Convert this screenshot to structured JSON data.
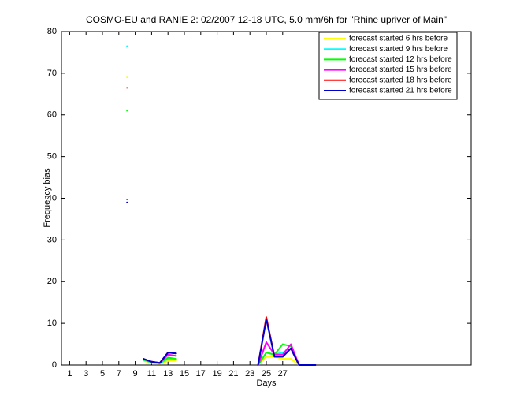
{
  "chart_data": {
    "type": "line",
    "title": "COSMO-EU and RANIE 2: 02/2007 12-18 UTC, 5.0 mm/6h for \"Rhine upriver of Main\"",
    "xlabel": "Days",
    "ylabel": "Frequency bias",
    "x": [
      1,
      2,
      3,
      4,
      5,
      6,
      7,
      8,
      9,
      10,
      11,
      12,
      13,
      14,
      15,
      16,
      17,
      18,
      19,
      20,
      21,
      22,
      23,
      24,
      25,
      26,
      27,
      28,
      29,
      30,
      31
    ],
    "series": [
      {
        "name": "forecast started 6 hrs before",
        "color": "#ffff00",
        "values": [
          null,
          null,
          null,
          null,
          null,
          null,
          null,
          69,
          null,
          1.0,
          0.5,
          0.3,
          1.0,
          1.0,
          null,
          null,
          null,
          null,
          null,
          null,
          null,
          null,
          null,
          0,
          2,
          2,
          1.5,
          1.5,
          0,
          0,
          0
        ]
      },
      {
        "name": "forecast started 9 hrs before",
        "color": "#00ffff",
        "values": [
          null,
          null,
          null,
          null,
          null,
          null,
          null,
          76.5,
          null,
          1.2,
          0.6,
          0.4,
          1.5,
          1.3,
          null,
          null,
          null,
          null,
          null,
          null,
          null,
          null,
          null,
          0,
          3,
          2.5,
          3,
          4,
          0,
          0,
          0
        ]
      },
      {
        "name": "forecast started 12 hrs before",
        "color": "#00ff00",
        "values": [
          null,
          null,
          null,
          null,
          null,
          null,
          null,
          61,
          null,
          1.3,
          0.7,
          0.5,
          1.8,
          1.5,
          null,
          null,
          null,
          null,
          null,
          null,
          null,
          null,
          null,
          0,
          3,
          2.5,
          5,
          4.5,
          0,
          0,
          0
        ]
      },
      {
        "name": "forecast started 15 hrs before",
        "color": "#ff00ff",
        "values": [
          null,
          null,
          null,
          null,
          null,
          null,
          null,
          39.7,
          null,
          1.4,
          0.8,
          0.5,
          2.5,
          2.2,
          null,
          null,
          null,
          null,
          null,
          null,
          null,
          null,
          null,
          0,
          5.5,
          2.5,
          2.5,
          5,
          0,
          0,
          0
        ]
      },
      {
        "name": "forecast started 18 hrs before",
        "color": "#ff0000",
        "values": [
          null,
          null,
          null,
          null,
          null,
          null,
          null,
          66.5,
          null,
          1.5,
          0.8,
          0.5,
          3,
          2.8,
          null,
          null,
          null,
          null,
          null,
          null,
          null,
          null,
          null,
          0,
          11.5,
          2,
          2,
          4,
          0,
          0,
          0
        ]
      },
      {
        "name": "forecast started 21 hrs before",
        "color": "#0000cc",
        "values": [
          null,
          null,
          null,
          null,
          null,
          null,
          null,
          39,
          null,
          1.5,
          0.8,
          0.5,
          3,
          2.8,
          null,
          null,
          null,
          null,
          null,
          null,
          null,
          null,
          null,
          0,
          11,
          2,
          2,
          4,
          0,
          0,
          0
        ]
      }
    ],
    "xlim": [
      0,
      50
    ],
    "xticks": [
      1,
      3,
      5,
      7,
      9,
      11,
      13,
      15,
      17,
      19,
      21,
      23,
      25,
      27
    ],
    "ylim": [
      0,
      80
    ],
    "yticks": [
      0,
      10,
      20,
      30,
      40,
      50,
      60,
      70,
      80
    ],
    "grid": false,
    "legend": "upper right"
  }
}
